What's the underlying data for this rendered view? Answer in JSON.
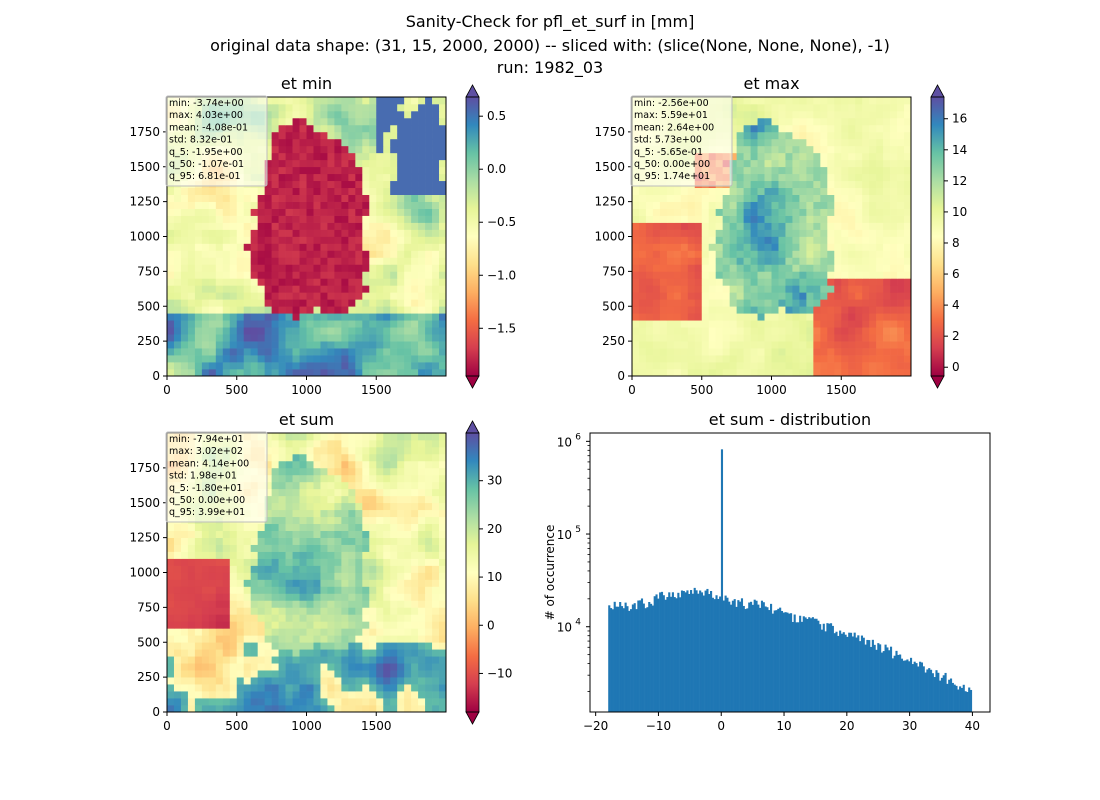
{
  "figure": {
    "suptitle_lines": [
      "Sanity-Check for pfl_et_surf in [mm]",
      "original data shape: (31, 15, 2000, 2000) -- sliced with: (slice(None, None, None), -1)",
      "run: 1982_03"
    ]
  },
  "colormap": {
    "name": "Spectral",
    "stops": [
      "#9e0142",
      "#d53e4f",
      "#f46d43",
      "#fdae61",
      "#fee08b",
      "#ffffbf",
      "#e6f598",
      "#abdda4",
      "#66c2a5",
      "#3288bd",
      "#5e4fa2"
    ]
  },
  "chart_data": [
    {
      "type": "heatmap",
      "title": "et min",
      "xlim": [
        0,
        2000
      ],
      "ylim": [
        0,
        2000
      ],
      "x_ticks": [
        0,
        500,
        1000,
        1500
      ],
      "y_ticks": [
        0,
        250,
        500,
        750,
        1000,
        1250,
        1500,
        1750
      ],
      "colorbar": {
        "vmin": -1.95,
        "vmax": 0.681,
        "ticks": [
          0.5,
          0.0,
          -0.5,
          -1.0,
          -1.5
        ],
        "tick_labels": [
          "0.5",
          "0.0",
          "−0.5",
          "−1.0",
          "−1.5"
        ],
        "extend": "both"
      },
      "stats": [
        "min: -3.74e+00",
        "max: 4.03e+00",
        "mean: -4.08e-01",
        "std: 8.32e-01",
        "q_5: -1.95e+00",
        "q_50: -1.07e-01",
        "q_95: 6.81e-01"
      ]
    },
    {
      "type": "heatmap",
      "title": "et max",
      "xlim": [
        0,
        2000
      ],
      "ylim": [
        0,
        2000
      ],
      "x_ticks": [
        0,
        500,
        1000,
        1500
      ],
      "y_ticks": [
        0,
        250,
        500,
        750,
        1000,
        1250,
        1500,
        1750
      ],
      "colorbar": {
        "vmin": -0.565,
        "vmax": 17.4,
        "ticks": [
          16,
          14,
          12,
          10,
          8,
          6,
          4,
          2,
          0
        ],
        "tick_labels": [
          "16",
          "14",
          "12",
          "10",
          "8",
          "6",
          "4",
          "2",
          "0"
        ],
        "extend": "both"
      },
      "stats": [
        "min: -2.56e+00",
        "max: 5.59e+01",
        "mean: 2.64e+00",
        "std: 5.73e+00",
        "q_5: -5.65e-01",
        "q_50: 0.00e+00",
        "q_95: 1.74e+01"
      ]
    },
    {
      "type": "heatmap",
      "title": "et sum",
      "xlim": [
        0,
        2000
      ],
      "ylim": [
        0,
        2000
      ],
      "x_ticks": [
        0,
        500,
        1000,
        1500
      ],
      "y_ticks": [
        0,
        250,
        500,
        750,
        1000,
        1250,
        1500,
        1750
      ],
      "colorbar": {
        "vmin": -18.0,
        "vmax": 39.9,
        "ticks": [
          30,
          20,
          10,
          0,
          -10
        ],
        "tick_labels": [
          "30",
          "20",
          "10",
          "0",
          "−10"
        ],
        "extend": "both"
      },
      "stats": [
        "min: -7.94e+01",
        "max: 3.02e+02",
        "mean: 4.14e+00",
        "std: 1.98e+01",
        "q_5: -1.80e+01",
        "q_50: 0.00e+00",
        "q_95: 3.99e+01"
      ]
    },
    {
      "type": "bar",
      "title": "et sum - distribution",
      "xlabel": "",
      "ylabel": "# of occurrence",
      "xlim": [
        -20.9,
        42.8
      ],
      "ylim_log10": [
        3.08,
        6.09
      ],
      "y_scale": "log",
      "x_ticks": [
        -20,
        -10,
        0,
        10,
        20,
        30,
        40
      ],
      "x_tick_labels": [
        "−20",
        "−10",
        "0",
        "10",
        "20",
        "30",
        "40"
      ],
      "y_ticks": [
        4,
        5,
        6
      ],
      "y_tick_labels": [
        "10",
        "10",
        "10"
      ],
      "y_tick_exponents": [
        "4",
        "5",
        "6"
      ],
      "bar_color": "#1f77b4",
      "bin_range": [
        -18.0,
        39.9
      ],
      "spike": {
        "x": 0.0,
        "value": 820000
      },
      "profile_x": [
        -18,
        -17,
        -15,
        -12,
        -10,
        -8,
        -6,
        -4,
        -2,
        -1,
        1,
        3,
        5,
        8,
        10,
        12,
        15,
        18,
        20,
        22,
        25,
        28,
        30,
        32,
        35,
        37,
        38,
        39,
        39.9
      ],
      "profile_values": [
        15000,
        18000,
        17000,
        18000,
        21000,
        23000,
        24000,
        24000,
        23000,
        21000,
        19000,
        18000,
        17500,
        16000,
        14000,
        12500,
        11000,
        9500,
        8500,
        7500,
        6200,
        5000,
        4500,
        3700,
        3000,
        2500,
        2200,
        2000,
        1900
      ]
    }
  ]
}
